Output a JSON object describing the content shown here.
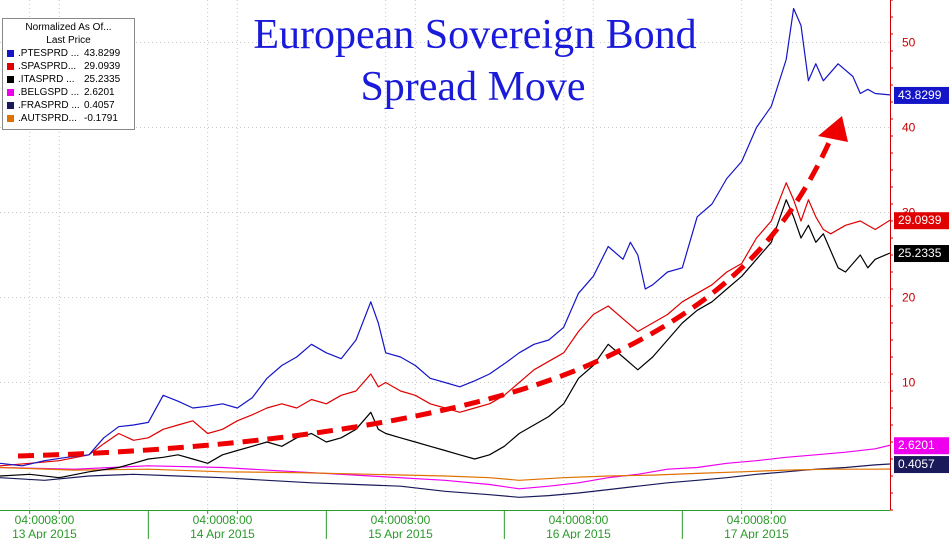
{
  "chart_data": {
    "type": "line",
    "title_line1": "European Sovereign Bond",
    "title_line2": "Spread Move",
    "legend_title_line1": "Normalized As Of...",
    "legend_title_line2": "Last Price",
    "ylim": [
      -5,
      55
    ],
    "yticks": [
      "10",
      "20",
      "30",
      "40",
      "50"
    ],
    "ytick_values": [
      10,
      20,
      30,
      40,
      50
    ],
    "xticks": [
      {
        "label": "04:00",
        "x": 4
      },
      {
        "label": "08:00",
        "x": 8
      },
      {
        "label": "04:00",
        "x": 28
      },
      {
        "label": "08:00",
        "x": 32
      },
      {
        "label": "04:00",
        "x": 52
      },
      {
        "label": "08:00",
        "x": 56
      },
      {
        "label": "04:00",
        "x": 76
      },
      {
        "label": "08:00",
        "x": 80
      },
      {
        "label": "04:00",
        "x": 100
      },
      {
        "label": "08:00",
        "x": 104
      }
    ],
    "xdates": [
      {
        "label": "13 Apr 2015",
        "x": 6
      },
      {
        "label": "14 Apr 2015",
        "x": 30
      },
      {
        "label": "15 Apr 2015",
        "x": 54
      },
      {
        "label": "16 Apr 2015",
        "x": 78
      },
      {
        "label": "17 Apr 2015",
        "x": 102
      }
    ],
    "day_separators": [
      20,
      44,
      68,
      92
    ],
    "xlim": [
      0,
      120
    ],
    "annotation": {
      "type": "trend-arrow",
      "color": "#ee0000"
    },
    "series": [
      {
        "name": ".PTESPRD ...",
        "last": "43.8299",
        "color": "#1515c8",
        "tag_text": "#ffffff",
        "points": [
          [
            0,
            0.5
          ],
          [
            3,
            0.2
          ],
          [
            6,
            0.8
          ],
          [
            9,
            1.2
          ],
          [
            12,
            1.5
          ],
          [
            14,
            3.5
          ],
          [
            16,
            4.8
          ],
          [
            18,
            5.0
          ],
          [
            20,
            5.3
          ],
          [
            22,
            8.5
          ],
          [
            24,
            7.8
          ],
          [
            26,
            7.0
          ],
          [
            28,
            7.2
          ],
          [
            30,
            7.5
          ],
          [
            32,
            7.0
          ],
          [
            34,
            8.2
          ],
          [
            36,
            10.5
          ],
          [
            38,
            12.0
          ],
          [
            40,
            13.0
          ],
          [
            42,
            14.5
          ],
          [
            44,
            13.5
          ],
          [
            46,
            12.8
          ],
          [
            48,
            15.0
          ],
          [
            50,
            19.5
          ],
          [
            51,
            17.0
          ],
          [
            52,
            13.5
          ],
          [
            54,
            13.0
          ],
          [
            56,
            12.0
          ],
          [
            58,
            10.5
          ],
          [
            60,
            10.0
          ],
          [
            62,
            9.5
          ],
          [
            64,
            10.2
          ],
          [
            66,
            11.0
          ],
          [
            68,
            12.2
          ],
          [
            70,
            13.5
          ],
          [
            72,
            14.5
          ],
          [
            74,
            15.0
          ],
          [
            76,
            16.5
          ],
          [
            78,
            20.5
          ],
          [
            80,
            22.5
          ],
          [
            82,
            26.0
          ],
          [
            84,
            24.5
          ],
          [
            85,
            26.5
          ],
          [
            86,
            25.0
          ],
          [
            87,
            21.0
          ],
          [
            88,
            21.5
          ],
          [
            90,
            23.0
          ],
          [
            92,
            23.5
          ],
          [
            94,
            29.5
          ],
          [
            96,
            31.0
          ],
          [
            98,
            34.0
          ],
          [
            100,
            36.0
          ],
          [
            102,
            40.0
          ],
          [
            104,
            42.5
          ],
          [
            106,
            48.0
          ],
          [
            107,
            54.0
          ],
          [
            108,
            52.0
          ],
          [
            109,
            45.5
          ],
          [
            110,
            47.5
          ],
          [
            111,
            45.5
          ],
          [
            112,
            46.5
          ],
          [
            113,
            47.5
          ],
          [
            115,
            46.0
          ],
          [
            116,
            44.0
          ],
          [
            117,
            44.5
          ],
          [
            118,
            44.0
          ],
          [
            120,
            43.83
          ]
        ]
      },
      {
        "name": ".SPASPRD...",
        "last": "29.0939",
        "color": "#e00000",
        "tag_text": "#ffffff",
        "points": [
          [
            0,
            0.2
          ],
          [
            4,
            0.5
          ],
          [
            8,
            0.8
          ],
          [
            12,
            1.5
          ],
          [
            14,
            2.8
          ],
          [
            16,
            4.0
          ],
          [
            18,
            3.2
          ],
          [
            20,
            3.5
          ],
          [
            22,
            4.5
          ],
          [
            24,
            5.0
          ],
          [
            26,
            5.5
          ],
          [
            28,
            4.0
          ],
          [
            30,
            4.5
          ],
          [
            32,
            5.5
          ],
          [
            34,
            6.2
          ],
          [
            36,
            7.0
          ],
          [
            38,
            7.5
          ],
          [
            40,
            7.0
          ],
          [
            42,
            8.0
          ],
          [
            44,
            7.5
          ],
          [
            46,
            8.5
          ],
          [
            48,
            9.0
          ],
          [
            50,
            11.0
          ],
          [
            51,
            9.5
          ],
          [
            52,
            10.0
          ],
          [
            54,
            9.0
          ],
          [
            56,
            8.5
          ],
          [
            58,
            7.5
          ],
          [
            60,
            7.0
          ],
          [
            62,
            6.5
          ],
          [
            64,
            7.0
          ],
          [
            66,
            7.5
          ],
          [
            68,
            8.5
          ],
          [
            70,
            10.0
          ],
          [
            72,
            11.5
          ],
          [
            74,
            12.5
          ],
          [
            76,
            13.5
          ],
          [
            78,
            16.0
          ],
          [
            80,
            18.0
          ],
          [
            82,
            19.0
          ],
          [
            84,
            17.5
          ],
          [
            86,
            16.0
          ],
          [
            88,
            17.0
          ],
          [
            90,
            18.0
          ],
          [
            92,
            19.5
          ],
          [
            94,
            20.5
          ],
          [
            96,
            21.5
          ],
          [
            98,
            23.0
          ],
          [
            100,
            24.0
          ],
          [
            102,
            27.0
          ],
          [
            104,
            29.0
          ],
          [
            106,
            33.5
          ],
          [
            107,
            31.5
          ],
          [
            108,
            29.0
          ],
          [
            109,
            31.5
          ],
          [
            110,
            29.5
          ],
          [
            111,
            28.0
          ],
          [
            112,
            27.5
          ],
          [
            114,
            28.5
          ],
          [
            116,
            29.0
          ],
          [
            118,
            28.0
          ],
          [
            120,
            29.09
          ]
        ]
      },
      {
        "name": ".ITASPRD ...",
        "last": "25.2335",
        "color": "#000000",
        "tag_text": "#ffffff",
        "points": [
          [
            0,
            -1.0
          ],
          [
            4,
            -0.8
          ],
          [
            8,
            -1.2
          ],
          [
            12,
            -0.5
          ],
          [
            16,
            0.0
          ],
          [
            18,
            0.5
          ],
          [
            20,
            1.0
          ],
          [
            22,
            1.2
          ],
          [
            24,
            1.5
          ],
          [
            26,
            1.0
          ],
          [
            28,
            0.5
          ],
          [
            30,
            1.5
          ],
          [
            32,
            2.0
          ],
          [
            34,
            2.5
          ],
          [
            36,
            3.0
          ],
          [
            38,
            2.5
          ],
          [
            40,
            3.5
          ],
          [
            42,
            4.0
          ],
          [
            44,
            3.0
          ],
          [
            46,
            3.5
          ],
          [
            48,
            4.5
          ],
          [
            50,
            6.5
          ],
          [
            51,
            4.5
          ],
          [
            52,
            4.0
          ],
          [
            54,
            3.5
          ],
          [
            56,
            3.0
          ],
          [
            58,
            2.5
          ],
          [
            60,
            2.0
          ],
          [
            62,
            1.5
          ],
          [
            64,
            1.0
          ],
          [
            66,
            1.5
          ],
          [
            68,
            2.5
          ],
          [
            70,
            4.0
          ],
          [
            72,
            5.0
          ],
          [
            74,
            6.0
          ],
          [
            76,
            7.5
          ],
          [
            78,
            10.5
          ],
          [
            80,
            12.0
          ],
          [
            82,
            14.5
          ],
          [
            84,
            13.0
          ],
          [
            86,
            11.5
          ],
          [
            88,
            13.0
          ],
          [
            90,
            15.0
          ],
          [
            92,
            17.0
          ],
          [
            94,
            18.5
          ],
          [
            96,
            19.5
          ],
          [
            98,
            21.0
          ],
          [
            100,
            22.5
          ],
          [
            102,
            24.5
          ],
          [
            104,
            26.5
          ],
          [
            106,
            31.5
          ],
          [
            107,
            29.5
          ],
          [
            108,
            27.0
          ],
          [
            109,
            28.5
          ],
          [
            110,
            26.5
          ],
          [
            111,
            27.5
          ],
          [
            112,
            25.5
          ],
          [
            113,
            23.5
          ],
          [
            114,
            23.0
          ],
          [
            116,
            25.0
          ],
          [
            117,
            23.5
          ],
          [
            118,
            24.5
          ],
          [
            120,
            25.23
          ]
        ]
      },
      {
        "name": ".BELGSPD ...",
        "last": "2.6201",
        "color": "#ee00ee",
        "tag_text": "#ffffff",
        "points": [
          [
            0,
            0.0
          ],
          [
            10,
            -0.2
          ],
          [
            20,
            0.2
          ],
          [
            30,
            0.0
          ],
          [
            40,
            -0.5
          ],
          [
            50,
            -1.0
          ],
          [
            60,
            -1.5
          ],
          [
            66,
            -2.0
          ],
          [
            70,
            -2.5
          ],
          [
            74,
            -2.2
          ],
          [
            78,
            -1.8
          ],
          [
            82,
            -1.2
          ],
          [
            86,
            -0.8
          ],
          [
            90,
            -0.2
          ],
          [
            94,
            0.0
          ],
          [
            98,
            0.5
          ],
          [
            102,
            0.8
          ],
          [
            106,
            1.2
          ],
          [
            110,
            1.5
          ],
          [
            114,
            1.8
          ],
          [
            118,
            2.2
          ],
          [
            120,
            2.62
          ]
        ]
      },
      {
        "name": ".FRASPRD ...",
        "last": "0.4057",
        "color": "#1a1a5a",
        "tag_text": "#ffffff",
        "points": [
          [
            0,
            -1.2
          ],
          [
            6,
            -1.5
          ],
          [
            12,
            -1.0
          ],
          [
            18,
            -0.8
          ],
          [
            24,
            -1.0
          ],
          [
            30,
            -1.2
          ],
          [
            36,
            -1.5
          ],
          [
            42,
            -1.8
          ],
          [
            48,
            -2.0
          ],
          [
            54,
            -2.2
          ],
          [
            60,
            -2.8
          ],
          [
            66,
            -3.2
          ],
          [
            70,
            -3.5
          ],
          [
            74,
            -3.3
          ],
          [
            78,
            -3.0
          ],
          [
            82,
            -2.6
          ],
          [
            86,
            -2.2
          ],
          [
            90,
            -1.8
          ],
          [
            94,
            -1.5
          ],
          [
            98,
            -1.2
          ],
          [
            102,
            -0.8
          ],
          [
            106,
            -0.5
          ],
          [
            110,
            -0.2
          ],
          [
            114,
            0.0
          ],
          [
            118,
            0.3
          ],
          [
            120,
            0.41
          ]
        ]
      },
      {
        "name": ".AUTSPRD...",
        "last": "-0.1791",
        "color": "#e07000",
        "tag_text": "#ffffff",
        "points": [
          [
            0,
            0.0
          ],
          [
            10,
            -0.3
          ],
          [
            20,
            -0.2
          ],
          [
            30,
            -0.5
          ],
          [
            40,
            -0.6
          ],
          [
            50,
            -0.8
          ],
          [
            60,
            -1.0
          ],
          [
            66,
            -1.2
          ],
          [
            70,
            -1.5
          ],
          [
            76,
            -1.2
          ],
          [
            82,
            -1.0
          ],
          [
            88,
            -0.9
          ],
          [
            94,
            -0.7
          ],
          [
            100,
            -0.5
          ],
          [
            106,
            -0.3
          ],
          [
            112,
            -0.2
          ],
          [
            118,
            -0.2
          ],
          [
            120,
            -0.18
          ]
        ]
      }
    ]
  }
}
